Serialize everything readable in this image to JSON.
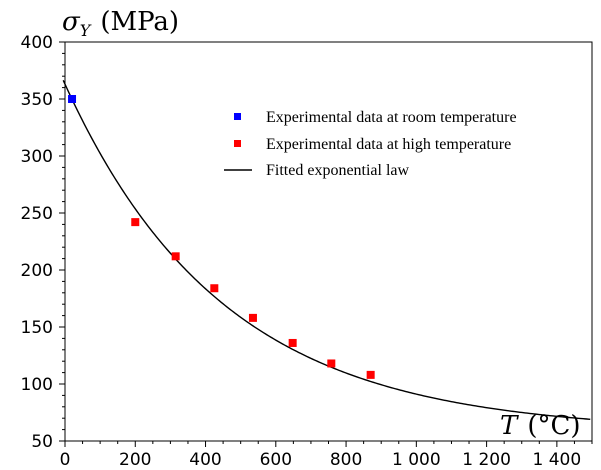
{
  "chart_data": {
    "type": "scatter",
    "title": "",
    "ylabel_symbol": "σ",
    "ylabel_sub": "Y",
    "ylabel_unit": "(MPa)",
    "xlabel_symbol": "T",
    "xlabel_unit": "(°C)",
    "xlim": [
      0,
      1500
    ],
    "ylim": [
      50,
      400
    ],
    "xticks": [
      0,
      200,
      400,
      600,
      800,
      1000,
      1200,
      1400
    ],
    "xtick_labels": [
      "0",
      "200",
      "400",
      "600",
      "800",
      "1 000",
      "1 200",
      "1 400"
    ],
    "yticks": [
      50,
      100,
      150,
      200,
      250,
      300,
      350,
      400
    ],
    "ytick_labels": [
      "50",
      "100",
      "150",
      "200",
      "250",
      "300",
      "350",
      "400"
    ],
    "grid": false,
    "legend_position": "top-right",
    "series": [
      {
        "name": "Experimental data at room temperature",
        "kind": "marker",
        "color": "#0000ff",
        "points": [
          [
            20,
            350
          ]
        ]
      },
      {
        "name": "Experimental data at high temperature",
        "kind": "marker",
        "color": "#ff0000",
        "points": [
          [
            200,
            242
          ],
          [
            315,
            212
          ],
          [
            425,
            184
          ],
          [
            535,
            158
          ],
          [
            648,
            136
          ],
          [
            758,
            118
          ],
          [
            870,
            108
          ]
        ]
      },
      {
        "name": "Fitted exponential law",
        "kind": "line",
        "color": "#000000",
        "model": {
          "a": 305,
          "b": 0.00222,
          "c": 58
        }
      }
    ]
  }
}
